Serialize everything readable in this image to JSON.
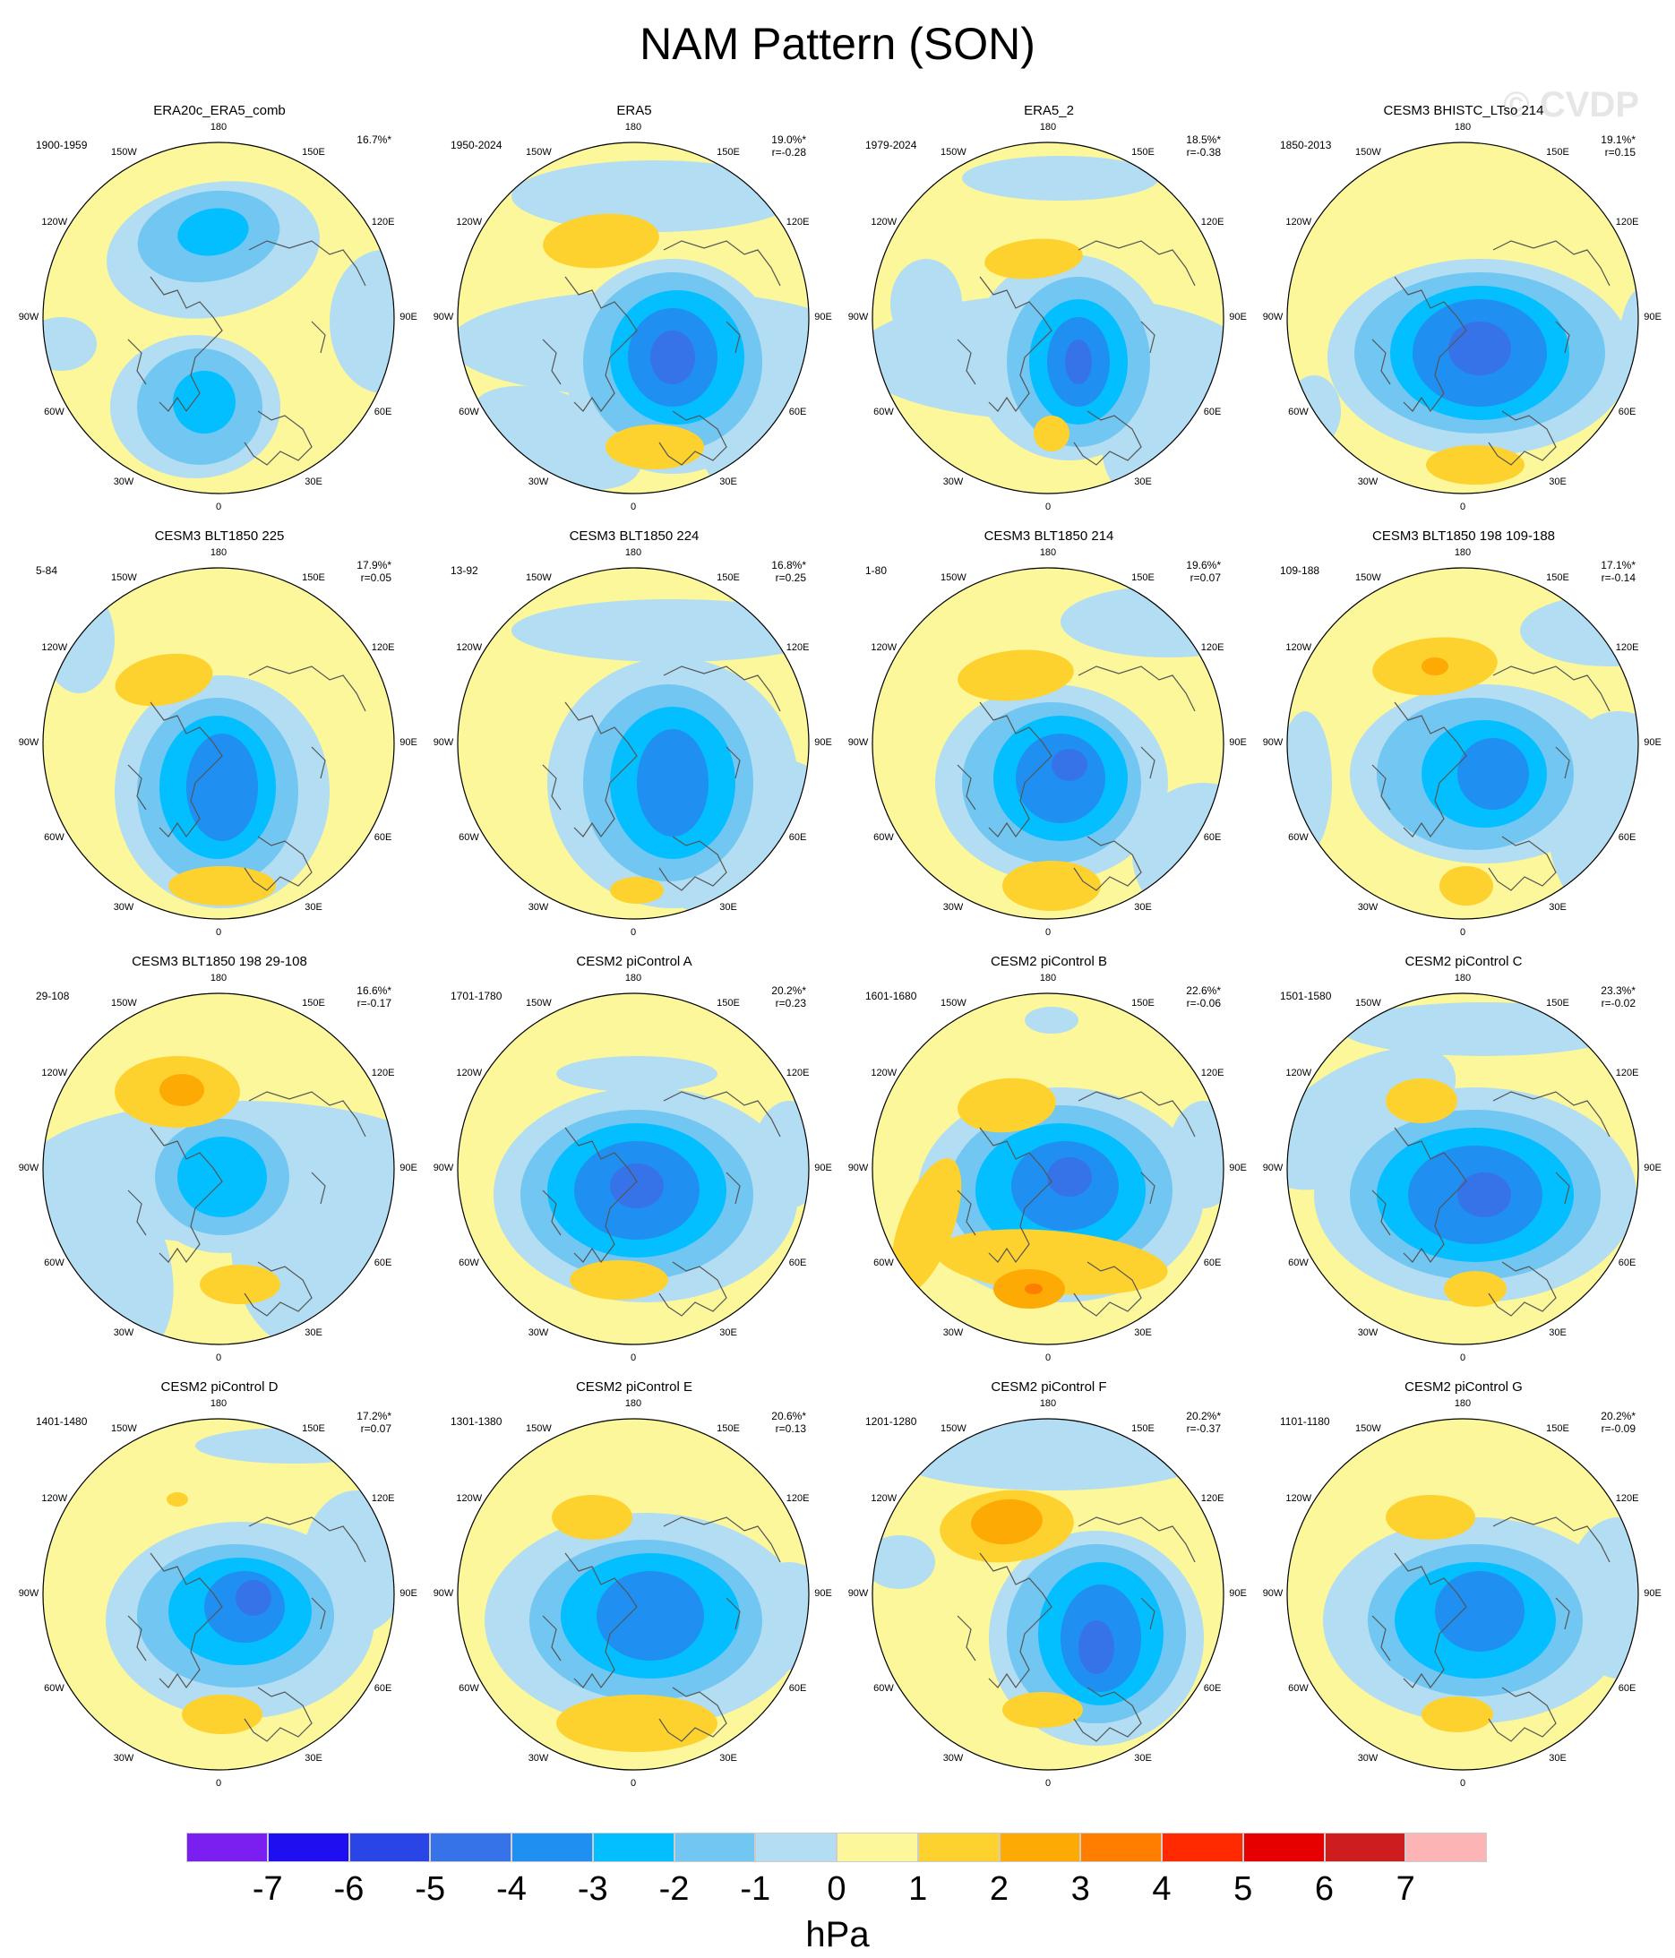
{
  "title": "NAM Pattern (SON)",
  "watermark": "© CVDP",
  "longitude_labels": [
    "180",
    "150E",
    "120E",
    "90E",
    "60E",
    "30E",
    "0",
    "30W",
    "60W",
    "90W",
    "120W",
    "150W"
  ],
  "colors": {
    "-7": "#7a1ff0",
    "-6": "#1f0ff0",
    "-5": "#2a45e6",
    "-4": "#3773e8",
    "-3": "#1f8ff2",
    "-2": "#03bfff",
    "-1": "#71c6f2",
    "0-": "#b2ddf2",
    "0+": "#fbf79a",
    "1": "#fed22e",
    "2": "#fdaa04",
    "3": "#ff7e00",
    "4": "#ff2a00",
    "5": "#e60000",
    "6": "#cd1d1e",
    "7": "#fdb4b4",
    "coast": "#555555"
  },
  "panels": [
    {
      "title": "ERA20c_ERA5_comb",
      "years": "1900-1959",
      "pct": "16.7%*",
      "r": ""
    },
    {
      "title": "ERA5",
      "years": "1950-2024",
      "pct": "19.0%*",
      "r": "r=-0.28"
    },
    {
      "title": "ERA5_2",
      "years": "1979-2024",
      "pct": "18.5%*",
      "r": "r=-0.38"
    },
    {
      "title": "CESM3 BHISTC_LTso 214",
      "years": "1850-2013",
      "pct": "19.1%*",
      "r": "r=0.15"
    },
    {
      "title": "CESM3 BLT1850 225",
      "years": "5-84",
      "pct": "17.9%*",
      "r": "r=0.05"
    },
    {
      "title": "CESM3 BLT1850 224",
      "years": "13-92",
      "pct": "16.8%*",
      "r": "r=0.25"
    },
    {
      "title": "CESM3 BLT1850 214",
      "years": "1-80",
      "pct": "19.6%*",
      "r": "r=0.07"
    },
    {
      "title": "CESM3 BLT1850 198 109-188",
      "years": "109-188",
      "pct": "17.1%*",
      "r": "r=-0.14"
    },
    {
      "title": "CESM3 BLT1850 198 29-108",
      "years": "29-108",
      "pct": "16.6%*",
      "r": "r=-0.17"
    },
    {
      "title": "CESM2 piControl A",
      "years": "1701-1780",
      "pct": "20.2%*",
      "r": "r=0.23"
    },
    {
      "title": "CESM2 piControl B",
      "years": "1601-1680",
      "pct": "22.6%*",
      "r": "r=-0.06"
    },
    {
      "title": "CESM2 piControl C",
      "years": "1501-1580",
      "pct": "23.3%*",
      "r": "r=-0.02"
    },
    {
      "title": "CESM2 piControl D",
      "years": "1401-1480",
      "pct": "17.2%*",
      "r": "r=0.07"
    },
    {
      "title": "CESM2 piControl E",
      "years": "1301-1380",
      "pct": "20.6%*",
      "r": "r=0.13"
    },
    {
      "title": "CESM2 piControl F",
      "years": "1201-1280",
      "pct": "20.2%*",
      "r": "r=-0.37"
    },
    {
      "title": "CESM2 piControl G",
      "years": "1101-1180",
      "pct": "20.2%*",
      "r": "r=-0.09"
    }
  ],
  "colorbar": {
    "labels": [
      "-7",
      "-6",
      "-5",
      "-4",
      "-3",
      "-2",
      "-1",
      "0",
      "1",
      "2",
      "3",
      "4",
      "5",
      "6",
      "7"
    ],
    "units": "hPa"
  }
}
